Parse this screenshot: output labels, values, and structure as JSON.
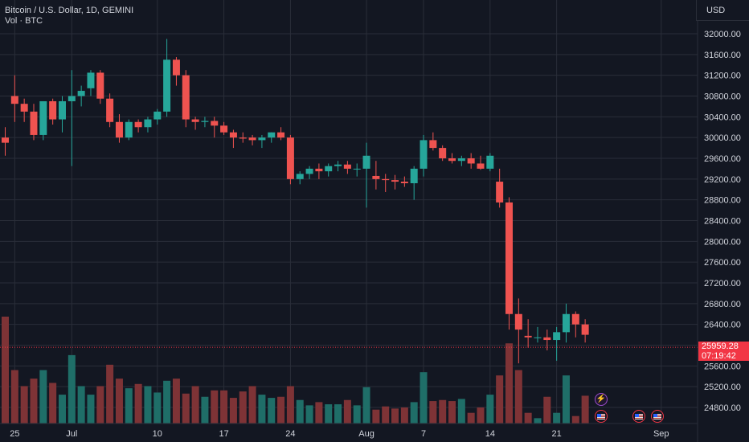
{
  "header": {
    "title": "Bitcoin / U.S. Dollar, 1D, GEMINI",
    "vol_label": "Vol · BTC",
    "currency": "USD"
  },
  "price_tag": {
    "price": "25959.28",
    "countdown": "07:19:42"
  },
  "colors": {
    "up": "#26a69a",
    "down": "#ef5350",
    "up_vol": "#1f6e68",
    "down_vol": "#7e3336",
    "grid": "#2a2e39",
    "bg": "#131722",
    "last_price": "#f23645"
  },
  "events": [
    {
      "icon": "flash-icon"
    },
    {
      "icon": "us-flag-icon"
    },
    {
      "icon": "us-flag-icon"
    },
    {
      "icon": "us-flag-icon"
    }
  ],
  "chart_data": {
    "type": "candlestick",
    "y_axis_ticks": [
      "32000.00",
      "31600.00",
      "31200.00",
      "30800.00",
      "30400.00",
      "30000.00",
      "29600.00",
      "29200.00",
      "28800.00",
      "28400.00",
      "28000.00",
      "27600.00",
      "27200.00",
      "26800.00",
      "26400.00",
      "26000.00",
      "25600.00",
      "25200.00",
      "24800.00"
    ],
    "y_axis_values": [
      32000,
      31600,
      31200,
      30800,
      30400,
      30000,
      29600,
      29200,
      28800,
      28400,
      28000,
      27600,
      27200,
      26800,
      26400,
      26000,
      25600,
      25200,
      24800
    ],
    "x_axis_labels": [
      "25",
      "Jul",
      "10",
      "17",
      "24",
      "Aug",
      "7",
      "14",
      "21",
      "Sep"
    ],
    "x_axis_dates": [
      "2023-06-25",
      "2023-07-01",
      "2023-07-10",
      "2023-07-17",
      "2023-07-24",
      "2023-08-01",
      "2023-08-07",
      "2023-08-14",
      "2023-08-21",
      "2023-09-01"
    ],
    "ylim": [
      24640,
      32240
    ],
    "last_price": 25959.28,
    "dates": [
      "2023-06-24",
      "2023-06-25",
      "2023-06-26",
      "2023-06-27",
      "2023-06-28",
      "2023-06-29",
      "2023-06-30",
      "2023-07-01",
      "2023-07-02",
      "2023-07-03",
      "2023-07-04",
      "2023-07-05",
      "2023-07-06",
      "2023-07-07",
      "2023-07-08",
      "2023-07-09",
      "2023-07-10",
      "2023-07-11",
      "2023-07-12",
      "2023-07-13",
      "2023-07-14",
      "2023-07-15",
      "2023-07-16",
      "2023-07-17",
      "2023-07-18",
      "2023-07-19",
      "2023-07-20",
      "2023-07-21",
      "2023-07-22",
      "2023-07-23",
      "2023-07-24",
      "2023-07-25",
      "2023-07-26",
      "2023-07-27",
      "2023-07-28",
      "2023-07-29",
      "2023-07-30",
      "2023-07-31",
      "2023-08-01",
      "2023-08-02",
      "2023-08-03",
      "2023-08-04",
      "2023-08-05",
      "2023-08-06",
      "2023-08-07",
      "2023-08-08",
      "2023-08-09",
      "2023-08-10",
      "2023-08-11",
      "2023-08-12",
      "2023-08-13",
      "2023-08-14",
      "2023-08-15",
      "2023-08-16",
      "2023-08-17",
      "2023-08-18",
      "2023-08-19",
      "2023-08-20",
      "2023-08-21",
      "2023-08-22",
      "2023-08-23",
      "2023-08-24"
    ],
    "open": [
      30000,
      30800,
      30650,
      30500,
      30050,
      30700,
      30350,
      30700,
      30800,
      30950,
      31250,
      30750,
      30300,
      30000,
      30300,
      30200,
      30350,
      30500,
      31500,
      31200,
      30350,
      30300,
      30320,
      30230,
      30100,
      30000,
      30000,
      29950,
      30000,
      30100,
      30000,
      29200,
      29300,
      29400,
      29350,
      29450,
      29480,
      29400,
      29400,
      29260,
      29200,
      29180,
      29150,
      29120,
      29400,
      29950,
      29800,
      29600,
      29550,
      29600,
      29500,
      29400,
      29150,
      28750,
      26600,
      26180,
      26150,
      26150,
      26100,
      26250,
      26600,
      26400
    ],
    "close": [
      29900,
      30650,
      30500,
      30050,
      30700,
      30350,
      30700,
      30800,
      30900,
      31250,
      30750,
      30300,
      30000,
      30300,
      30200,
      30350,
      30500,
      31500,
      31200,
      30350,
      30300,
      30320,
      30230,
      30100,
      30000,
      29980,
      29950,
      30000,
      30100,
      30000,
      29200,
      29300,
      29400,
      29350,
      29450,
      29480,
      29400,
      29400,
      29650,
      29200,
      29180,
      29150,
      29120,
      29400,
      29950,
      29800,
      29600,
      29550,
      29600,
      29500,
      29400,
      29650,
      28750,
      26600,
      26300,
      26150,
      26150,
      26100,
      26250,
      26600,
      26400,
      26200
    ],
    "high": [
      30200,
      31200,
      30750,
      30650,
      30700,
      30750,
      30800,
      31300,
      31000,
      31300,
      31300,
      30850,
      30450,
      30350,
      30350,
      30400,
      30550,
      31900,
      31550,
      31300,
      30400,
      30400,
      30400,
      30300,
      30150,
      30100,
      30050,
      30050,
      30100,
      30200,
      30050,
      29350,
      29450,
      29500,
      29500,
      29550,
      29550,
      29500,
      29900,
      29550,
      29300,
      29280,
      29250,
      29450,
      30050,
      30100,
      29850,
      29700,
      29650,
      29700,
      29650,
      29700,
      29400,
      28850,
      26900,
      26500,
      26350,
      26300,
      26350,
      26800,
      26650,
      26500
    ],
    "low": [
      29650,
      30300,
      30300,
      29950,
      29950,
      30250,
      30100,
      29450,
      30600,
      30800,
      30650,
      30200,
      29900,
      29950,
      30100,
      30100,
      30250,
      30400,
      31000,
      30200,
      30150,
      30200,
      30000,
      30050,
      29800,
      29900,
      29850,
      29800,
      29900,
      29950,
      29100,
      29100,
      29200,
      29200,
      29250,
      29350,
      29300,
      29250,
      28650,
      29000,
      28950,
      29000,
      29050,
      28800,
      29250,
      29750,
      29550,
      29500,
      29450,
      29400,
      29380,
      29350,
      28650,
      26300,
      25650,
      25950,
      26050,
      25900,
      25700,
      26050,
      26150,
      26050
    ],
    "volume": [
      100,
      50,
      35,
      42,
      50,
      38,
      27,
      64,
      35,
      27,
      35,
      55,
      42,
      33,
      37,
      35,
      29,
      40,
      42,
      28,
      35,
      25,
      31,
      31,
      24,
      30,
      35,
      27,
      24,
      25,
      35,
      22,
      17,
      20,
      18,
      18,
      22,
      17,
      34,
      13,
      16,
      14,
      15,
      20,
      48,
      21,
      22,
      21,
      23,
      10,
      15,
      27,
      45,
      75,
      50,
      10,
      5,
      25,
      10,
      45,
      7,
      26
    ],
    "volume_max": 100
  }
}
